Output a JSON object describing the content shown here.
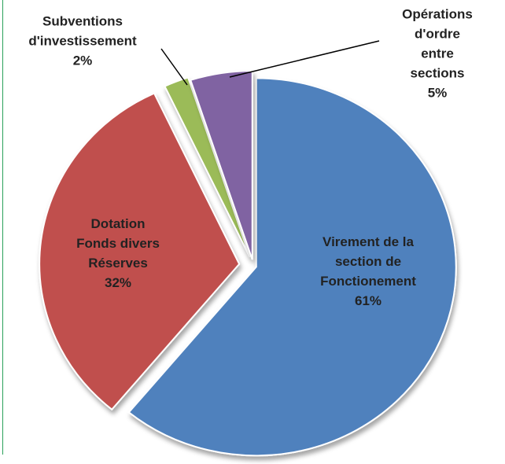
{
  "chart_data": {
    "type": "pie",
    "categories": [
      "Virement de la\nsection de\nFonctionement",
      "Dotation\nFonds divers\nRéserves",
      "Subventions\nd'investissement",
      "Opérations\nd'ordre entre\nsections"
    ],
    "values": [
      61,
      32,
      2,
      5
    ],
    "value_labels": [
      "61%",
      "32%",
      "2%",
      "5%"
    ],
    "colors": [
      "#4f81bd",
      "#c0504d",
      "#9bbb59",
      "#8064a2"
    ]
  }
}
